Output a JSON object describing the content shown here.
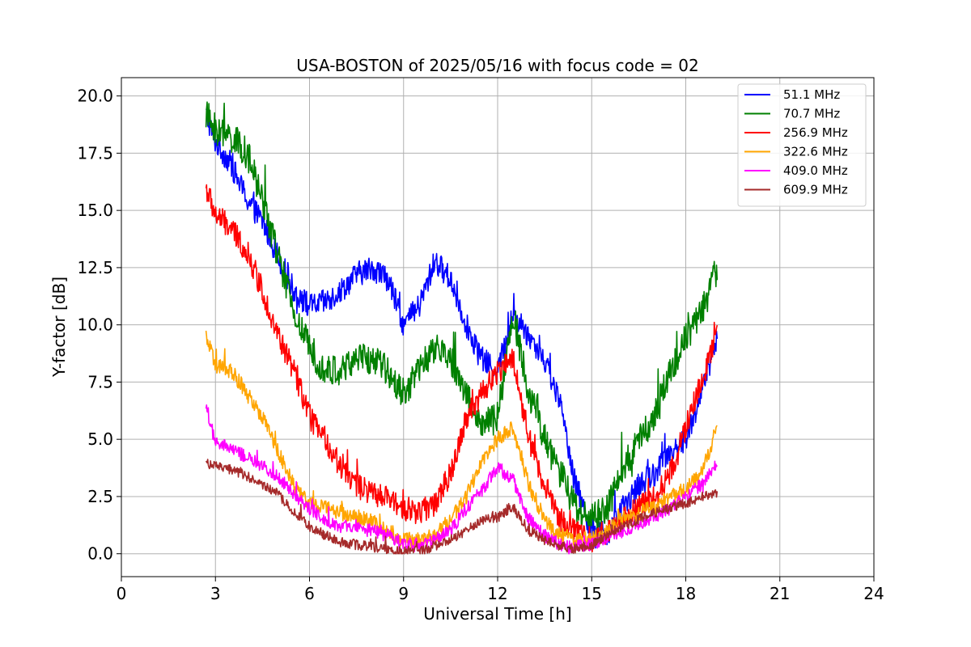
{
  "chart_data": {
    "type": "line",
    "title": "USA-BOSTON of 2025/05/16 with focus code = 02",
    "xlabel": "Universal Time [h]",
    "ylabel": "Y-factor [dB]",
    "xlim": [
      0,
      24
    ],
    "ylim": [
      -1.0,
      20.8
    ],
    "xticks": [
      0,
      3,
      6,
      9,
      12,
      15,
      18,
      21,
      24
    ],
    "xtick_labels": [
      "0",
      "3",
      "6",
      "9",
      "12",
      "15",
      "18",
      "21",
      "24"
    ],
    "yticks": [
      0.0,
      2.5,
      5.0,
      7.5,
      10.0,
      12.5,
      15.0,
      17.5,
      20.0
    ],
    "ytick_labels": [
      "0.0",
      "2.5",
      "5.0",
      "7.5",
      "10.0",
      "12.5",
      "15.0",
      "17.5",
      "20.0"
    ],
    "grid": true,
    "legend_position": "top-right",
    "series": [
      {
        "name": " 51.1 MHz",
        "color": "#0000ff",
        "x": [
          2.7,
          3.0,
          3.5,
          4.0,
          4.5,
          5.0,
          5.5,
          6.0,
          6.5,
          7.0,
          7.5,
          8.0,
          8.5,
          9.0,
          9.5,
          10.0,
          10.5,
          11.0,
          11.5,
          12.0,
          12.5,
          13.0,
          13.5,
          14.0,
          14.5,
          15.0,
          15.5,
          16.0,
          16.5,
          17.0,
          17.5,
          18.0,
          18.5,
          19.0
        ],
        "y": [
          19.2,
          18.0,
          17.0,
          15.5,
          14.5,
          13.0,
          11.5,
          10.8,
          11.0,
          11.5,
          12.2,
          12.5,
          12.0,
          10.0,
          10.8,
          12.8,
          12.0,
          10.0,
          8.5,
          8.0,
          10.5,
          9.5,
          8.5,
          6.5,
          3.0,
          1.0,
          0.8,
          2.0,
          3.0,
          3.5,
          4.5,
          5.0,
          7.0,
          9.5
        ],
        "noise": 0.55
      },
      {
        "name": " 70.7 MHz",
        "color": "#008000",
        "x": [
          2.7,
          3.0,
          3.5,
          4.0,
          4.5,
          5.0,
          5.5,
          6.0,
          6.5,
          7.0,
          7.5,
          8.0,
          8.5,
          9.0,
          9.5,
          10.0,
          10.5,
          11.0,
          11.5,
          12.0,
          12.5,
          13.0,
          13.5,
          14.0,
          14.5,
          15.0,
          15.5,
          16.0,
          16.5,
          17.0,
          17.5,
          18.0,
          18.5,
          19.0
        ],
        "y": [
          19.2,
          18.5,
          18.2,
          17.5,
          15.5,
          13.0,
          10.5,
          9.0,
          8.0,
          8.0,
          8.5,
          8.5,
          8.0,
          7.0,
          8.0,
          9.0,
          8.5,
          7.0,
          5.5,
          6.0,
          10.5,
          7.0,
          5.0,
          3.5,
          2.0,
          1.5,
          2.0,
          3.5,
          5.0,
          6.0,
          8.0,
          9.5,
          10.5,
          12.5
        ],
        "noise": 0.7
      },
      {
        "name": "256.9 MHz",
        "color": "#ff0000",
        "x": [
          2.7,
          3.0,
          3.5,
          4.0,
          4.5,
          5.0,
          5.5,
          6.0,
          6.5,
          7.0,
          7.5,
          8.0,
          8.5,
          9.0,
          9.5,
          10.0,
          10.5,
          11.0,
          11.5,
          12.0,
          12.5,
          13.0,
          13.5,
          14.0,
          14.5,
          15.0,
          15.5,
          16.0,
          16.5,
          17.0,
          17.5,
          18.0,
          18.5,
          19.0
        ],
        "y": [
          16.0,
          14.8,
          14.2,
          13.2,
          11.5,
          9.5,
          8.0,
          6.0,
          5.0,
          3.8,
          3.0,
          2.6,
          2.4,
          2.0,
          1.8,
          2.2,
          3.5,
          6.0,
          7.0,
          8.0,
          8.5,
          5.0,
          3.0,
          1.5,
          1.0,
          0.6,
          1.0,
          1.6,
          2.0,
          2.5,
          3.5,
          5.5,
          7.5,
          9.5
        ],
        "noise": 0.55
      },
      {
        "name": "322.6 MHz",
        "color": "#ffa500",
        "x": [
          2.7,
          3.0,
          3.5,
          4.0,
          4.5,
          5.0,
          5.5,
          6.0,
          6.5,
          7.0,
          7.5,
          8.0,
          8.5,
          9.0,
          9.5,
          10.0,
          10.5,
          11.0,
          11.5,
          12.0,
          12.5,
          13.0,
          13.5,
          14.0,
          14.5,
          15.0,
          15.5,
          16.0,
          16.5,
          17.0,
          17.5,
          18.0,
          18.5,
          19.0
        ],
        "y": [
          9.5,
          8.2,
          8.0,
          7.0,
          6.0,
          4.5,
          3.0,
          2.2,
          2.0,
          1.8,
          1.6,
          1.4,
          1.0,
          0.6,
          0.6,
          0.8,
          1.5,
          2.5,
          4.0,
          5.0,
          5.5,
          3.0,
          1.5,
          0.8,
          0.6,
          0.6,
          1.0,
          1.5,
          1.8,
          2.0,
          2.5,
          2.8,
          3.5,
          5.5
        ],
        "noise": 0.35
      },
      {
        "name": "409.0 MHz",
        "color": "#ff00ff",
        "x": [
          2.7,
          3.0,
          3.5,
          4.0,
          4.5,
          5.0,
          5.5,
          6.0,
          6.5,
          7.0,
          7.5,
          8.0,
          8.5,
          9.0,
          9.5,
          10.0,
          10.5,
          11.0,
          11.5,
          12.0,
          12.5,
          13.0,
          13.5,
          14.0,
          14.5,
          15.0,
          15.5,
          16.0,
          16.5,
          17.0,
          17.5,
          18.0,
          18.5,
          19.0
        ],
        "y": [
          6.5,
          4.8,
          4.6,
          4.2,
          3.8,
          3.4,
          2.6,
          2.0,
          1.5,
          1.2,
          1.1,
          1.0,
          0.8,
          0.5,
          0.4,
          0.6,
          1.0,
          2.0,
          2.8,
          3.8,
          3.2,
          1.5,
          0.8,
          0.4,
          0.3,
          0.4,
          0.7,
          1.0,
          1.2,
          1.6,
          2.0,
          2.5,
          3.0,
          4.0
        ],
        "noise": 0.3
      },
      {
        "name": "609.9 MHz",
        "color": "#a52a2a",
        "x": [
          2.7,
          3.0,
          3.5,
          4.0,
          4.5,
          5.0,
          5.5,
          6.0,
          6.5,
          7.0,
          7.5,
          8.0,
          8.5,
          9.0,
          9.5,
          10.0,
          10.5,
          11.0,
          11.5,
          12.0,
          12.5,
          13.0,
          13.5,
          14.0,
          14.5,
          15.0,
          15.5,
          16.0,
          16.5,
          17.0,
          17.5,
          18.0,
          18.5,
          19.0
        ],
        "y": [
          4.0,
          3.8,
          3.7,
          3.4,
          3.0,
          2.6,
          1.8,
          1.2,
          0.8,
          0.5,
          0.4,
          0.3,
          0.2,
          0.1,
          0.15,
          0.3,
          0.6,
          1.0,
          1.5,
          1.6,
          2.0,
          1.0,
          0.6,
          0.3,
          0.2,
          0.4,
          0.8,
          1.2,
          1.5,
          1.8,
          2.0,
          2.2,
          2.5,
          2.6
        ],
        "noise": 0.22
      }
    ]
  }
}
